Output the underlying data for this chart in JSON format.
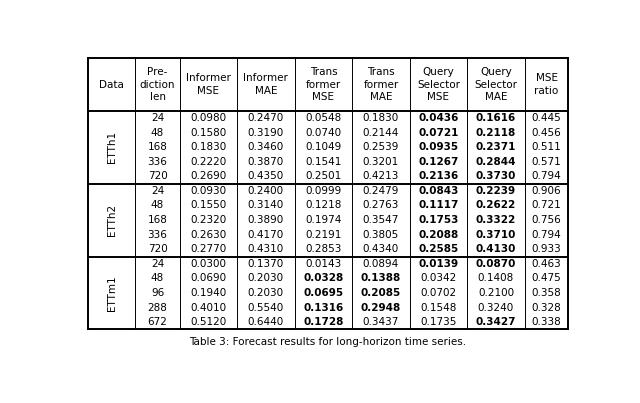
{
  "col_headers": [
    "Data",
    "Pre-\ndiction\nlen",
    "Informer\nMSE",
    "Informer\nMAE",
    "Trans\nformer\nMSE",
    "Trans\nformer\nMAE",
    "Query\nSelector\nMSE",
    "Query\nSelector\nMAE",
    "MSE\nratio"
  ],
  "datasets": [
    {
      "name": "ETTh1",
      "rows": [
        [
          "24",
          "0.0980",
          "0.2470",
          "0.0548",
          "0.1830",
          "0.0436",
          "0.1616",
          "0.445"
        ],
        [
          "48",
          "0.1580",
          "0.3190",
          "0.0740",
          "0.2144",
          "0.0721",
          "0.2118",
          "0.456"
        ],
        [
          "168",
          "0.1830",
          "0.3460",
          "0.1049",
          "0.2539",
          "0.0935",
          "0.2371",
          "0.511"
        ],
        [
          "336",
          "0.2220",
          "0.3870",
          "0.1541",
          "0.3201",
          "0.1267",
          "0.2844",
          "0.571"
        ],
        [
          "720",
          "0.2690",
          "0.4350",
          "0.2501",
          "0.4213",
          "0.2136",
          "0.3730",
          "0.794"
        ]
      ],
      "bold": [
        [
          false,
          false,
          false,
          false,
          false,
          true,
          true,
          false
        ],
        [
          false,
          false,
          false,
          false,
          false,
          true,
          true,
          false
        ],
        [
          false,
          false,
          false,
          false,
          false,
          true,
          true,
          false
        ],
        [
          false,
          false,
          false,
          false,
          false,
          true,
          true,
          false
        ],
        [
          false,
          false,
          false,
          false,
          false,
          true,
          true,
          false
        ]
      ]
    },
    {
      "name": "ETTh2",
      "rows": [
        [
          "24",
          "0.0930",
          "0.2400",
          "0.0999",
          "0.2479",
          "0.0843",
          "0.2239",
          "0.906"
        ],
        [
          "48",
          "0.1550",
          "0.3140",
          "0.1218",
          "0.2763",
          "0.1117",
          "0.2622",
          "0.721"
        ],
        [
          "168",
          "0.2320",
          "0.3890",
          "0.1974",
          "0.3547",
          "0.1753",
          "0.3322",
          "0.756"
        ],
        [
          "336",
          "0.2630",
          "0.4170",
          "0.2191",
          "0.3805",
          "0.2088",
          "0.3710",
          "0.794"
        ],
        [
          "720",
          "0.2770",
          "0.4310",
          "0.2853",
          "0.4340",
          "0.2585",
          "0.4130",
          "0.933"
        ]
      ],
      "bold": [
        [
          false,
          false,
          false,
          false,
          false,
          true,
          true,
          false
        ],
        [
          false,
          false,
          false,
          false,
          false,
          true,
          true,
          false
        ],
        [
          false,
          false,
          false,
          false,
          false,
          true,
          true,
          false
        ],
        [
          false,
          false,
          false,
          false,
          false,
          true,
          true,
          false
        ],
        [
          false,
          false,
          false,
          false,
          false,
          true,
          true,
          false
        ]
      ]
    },
    {
      "name": "ETTm1",
      "rows": [
        [
          "24",
          "0.0300",
          "0.1370",
          "0.0143",
          "0.0894",
          "0.0139",
          "0.0870",
          "0.463"
        ],
        [
          "48",
          "0.0690",
          "0.2030",
          "0.0328",
          "0.1388",
          "0.0342",
          "0.1408",
          "0.475"
        ],
        [
          "96",
          "0.1940",
          "0.2030",
          "0.0695",
          "0.2085",
          "0.0702",
          "0.2100",
          "0.358"
        ],
        [
          "288",
          "0.4010",
          "0.5540",
          "0.1316",
          "0.2948",
          "0.1548",
          "0.3240",
          "0.328"
        ],
        [
          "672",
          "0.5120",
          "0.6440",
          "0.1728",
          "0.3437",
          "0.1735",
          "0.3427",
          "0.338"
        ]
      ],
      "bold": [
        [
          false,
          false,
          false,
          false,
          false,
          true,
          true,
          false
        ],
        [
          false,
          false,
          false,
          true,
          true,
          false,
          false,
          false
        ],
        [
          false,
          false,
          false,
          true,
          true,
          false,
          false,
          false
        ],
        [
          false,
          false,
          false,
          true,
          true,
          false,
          false,
          false
        ],
        [
          false,
          false,
          false,
          true,
          false,
          false,
          true,
          false
        ]
      ]
    }
  ],
  "caption": "Table 3: Forecast results for long-horizon time series."
}
